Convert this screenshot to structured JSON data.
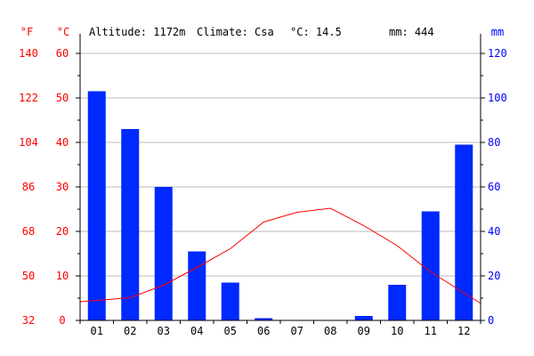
{
  "header": {
    "altitude": "Altitude: 1172m",
    "climate": "Climate: Csa",
    "temp": "°C: 14.5",
    "precip": "mm: 444"
  },
  "colors": {
    "bars": "#0029ff",
    "temperature": "#ff0000",
    "fahrenheit_axis": "#ff0000",
    "celsius_axis": "#ff0000",
    "mm_axis": "#0000ff",
    "grid": "#bbbbbb"
  },
  "chart_data": {
    "type": "bar",
    "categories": [
      "01",
      "02",
      "03",
      "04",
      "05",
      "06",
      "07",
      "08",
      "09",
      "10",
      "11",
      "12"
    ],
    "series": [
      {
        "type": "bar",
        "axis": "mm",
        "values": [
          103,
          86,
          60,
          31,
          17,
          1,
          0,
          0,
          2,
          16,
          49,
          79
        ]
      },
      {
        "type": "line",
        "axis": "celsius",
        "values": [
          4.5,
          5.1,
          7.9,
          11.9,
          16.1,
          22.1,
          24.3,
          25.2,
          21.3,
          16.8,
          10.9,
          6.2
        ]
      }
    ],
    "axes": {
      "fahrenheit": {
        "unit_label": "°F",
        "ticks": [
          "140",
          "122",
          "104",
          "86",
          "68",
          "50",
          "32"
        ]
      },
      "celsius": {
        "unit_label": "°C",
        "range": [
          0,
          60
        ],
        "ticks": [
          "60",
          "50",
          "40",
          "30",
          "20",
          "10",
          "0"
        ]
      },
      "mm": {
        "unit_label": "mm",
        "range": [
          0,
          120
        ],
        "ticks": [
          "120",
          "100",
          "80",
          "60",
          "40",
          "20",
          "0"
        ]
      }
    },
    "grid": true
  }
}
